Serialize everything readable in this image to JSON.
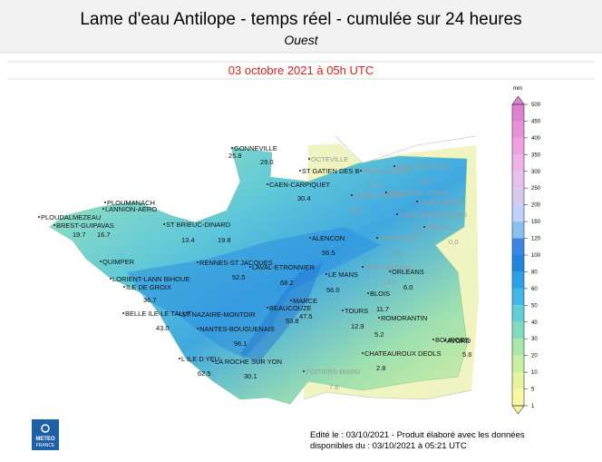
{
  "header": {
    "title": "Lame d'eau Antilope - temps réel - cumulée sur 24 heures",
    "subtitle": "Ouest"
  },
  "date": "03 octobre 2021 à 05h UTC",
  "legend": {
    "unit": "mm",
    "ticks": [
      500,
      450,
      400,
      350,
      300,
      250,
      200,
      150,
      120,
      100,
      80,
      60,
      50,
      40,
      30,
      20,
      10,
      5,
      1
    ],
    "colors": [
      "#e080d0",
      "#e890d8",
      "#f0a0e0",
      "#f0b0e8",
      "#e8c0f0",
      "#d8c8f0",
      "#c0d0f8",
      "#88c0f0",
      "#3a86e8",
      "#1e86e0",
      "#2aa0e8",
      "#40b8e8",
      "#60d0d8",
      "#7fdcc0",
      "#a8e8a8",
      "#c8f0a0",
      "#e6f59a",
      "#f9f7a0"
    ]
  },
  "stations": [
    {
      "name": "GONNEVILLE",
      "reading": "25.8"
    },
    {
      "reading": "29.0"
    },
    {
      "name": "OCTEVILLE"
    },
    {
      "name": "ST GATIEN DES B"
    },
    {
      "name": "ROUEN-BOOS",
      "reading": "25.2"
    },
    {
      "name": "BEAUVAIS-TILLE",
      "reading": "31.2"
    },
    {
      "name": "CAEN-CARPIQUET",
      "reading": "30.4"
    },
    {
      "name": "EVREUX-HUEST",
      "reading": "35.5"
    },
    {
      "name": "PONTOISE - AERO"
    },
    {
      "name": "LE BOURGET"
    },
    {
      "name": "PLOUMANACH"
    },
    {
      "name": "LANNION-AERO"
    },
    {
      "name": "PLOUDALMEZEAU"
    },
    {
      "name": "BREST-GUIPAVAS",
      "reading": "19.7"
    },
    {
      "reading": "16.7"
    },
    {
      "name": "ST BRIEUC-DINARD",
      "reading": "13.4"
    },
    {
      "reading": "19.8"
    },
    {
      "name": "PARIS-MONTSOURIS",
      "reading": "23.1"
    },
    {
      "name": "MELUN",
      "reading": "0.0"
    },
    {
      "name": "ALENCON",
      "reading": "56.5"
    },
    {
      "name": "CHARTRES",
      "reading": "27.5"
    },
    {
      "name": "QUIMPER"
    },
    {
      "name": "RENNES-ST JACQUES",
      "reading": "52.5"
    },
    {
      "name": "LAVAL-ETRONNIER",
      "reading": "68.2"
    },
    {
      "name": "CHATEAUDUN",
      "reading": "14.7"
    },
    {
      "name": "ORLEANS",
      "reading": "6.0"
    },
    {
      "name": "LE MANS",
      "reading": "56.0"
    },
    {
      "name": "LORIENT-LANN BIHOUE"
    },
    {
      "name": "ILE DE GROIX"
    },
    {
      "reading": "36.7"
    },
    {
      "name": "BLOIS",
      "reading": "11.7"
    },
    {
      "name": "MARCE"
    },
    {
      "name": "BEAUCOUZE",
      "reading": "47.5"
    },
    {
      "reading": "53.8"
    },
    {
      "name": "BELLE ILE-LE TALUT",
      "reading": "43.0"
    },
    {
      "name": "ST NAZAIRE-MONTOIR"
    },
    {
      "name": "TOURS",
      "reading": "12.9"
    },
    {
      "name": "ROMORANTIN"
    },
    {
      "name": "NANTES-BOUGUENAIS",
      "reading": "96.1"
    },
    {
      "reading": "5.2"
    },
    {
      "name": "BOURGES"
    },
    {
      "name": "AVORD"
    },
    {
      "name": "CHATEAUROUX DEOLS",
      "reading": "2.8"
    },
    {
      "reading": "5.6"
    },
    {
      "name": "L ILE D YEU",
      "reading": "62.5"
    },
    {
      "name": "LA ROCHE SUR YON",
      "reading": "30.1"
    },
    {
      "name": "POITIERS-BIARD",
      "reading": "7.6"
    }
  ],
  "footer": {
    "line1": "Edité le : 03/10/2021 - Produit élaboré avec les données",
    "line2": "disponibles du : 03/10/2021 à 05:21 UTC"
  },
  "logo": {
    "line1": "METEO",
    "line2": "FRANCE"
  }
}
